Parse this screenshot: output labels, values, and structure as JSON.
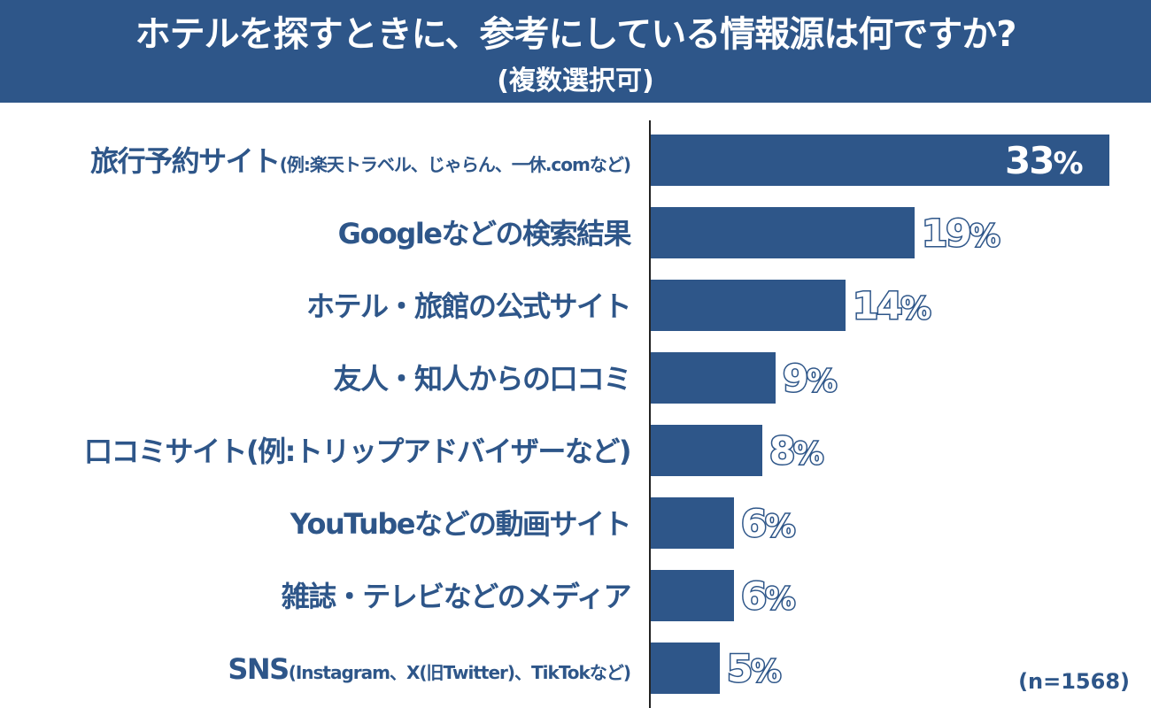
{
  "header": {
    "title": "ホテルを探すときに、参考にしている情報源は何ですか?",
    "subtitle": "(複数選択可)"
  },
  "colors": {
    "bar": "#2e5689",
    "header_bg": "#2e5689",
    "label": "#2e5689",
    "background": "#ffffff"
  },
  "rows": [
    {
      "label_main": "旅行予約サイト",
      "label_small": "(例:楽天トラベル、じゃらん、一休.comなど)",
      "value": "33",
      "unit": "%"
    },
    {
      "label_main": "Googleなどの検索結果",
      "label_small": "",
      "value": "19",
      "unit": "%"
    },
    {
      "label_main": "ホテル・旅館の公式サイト",
      "label_small": "",
      "value": "14",
      "unit": "%"
    },
    {
      "label_main": "友人・知人からの口コミ",
      "label_small": "",
      "value": "9",
      "unit": "%"
    },
    {
      "label_main": "口コミサイト(例:トリップアドバイザーなど)",
      "label_small": "",
      "value": "8",
      "unit": "%"
    },
    {
      "label_main": "YouTubeなどの動画サイト",
      "label_small": "",
      "value": "6",
      "unit": "%"
    },
    {
      "label_main": "雑誌・テレビなどのメディア",
      "label_small": "",
      "value": "6",
      "unit": "%"
    },
    {
      "label_main": "SNS",
      "label_small": "(Instagram、X(旧Twitter)、TikTokなど)",
      "value": "5",
      "unit": "%"
    }
  ],
  "footnote": "(n=1568)",
  "chart_data": {
    "type": "bar",
    "orientation": "horizontal",
    "title": "ホテルを探すときに、参考にしている情報源は何ですか? (複数選択可)",
    "categories": [
      "旅行予約サイト(例:楽天トラベル、じゃらん、一休.comなど)",
      "Googleなどの検索結果",
      "ホテル・旅館の公式サイト",
      "友人・知人からの口コミ",
      "口コミサイト(例:トリップアドバイザーなど)",
      "YouTubeなどの動画サイト",
      "雑誌・テレビなどのメディア",
      "SNS(Instagram、X(旧Twitter)、TikTokなど)"
    ],
    "values": [
      33,
      19,
      14,
      9,
      8,
      6,
      6,
      5
    ],
    "unit": "%",
    "xlabel": "",
    "ylabel": "",
    "xlim": [
      0,
      33
    ],
    "grid": false,
    "legend": "none",
    "annotations": [
      "(n=1568)"
    ]
  }
}
